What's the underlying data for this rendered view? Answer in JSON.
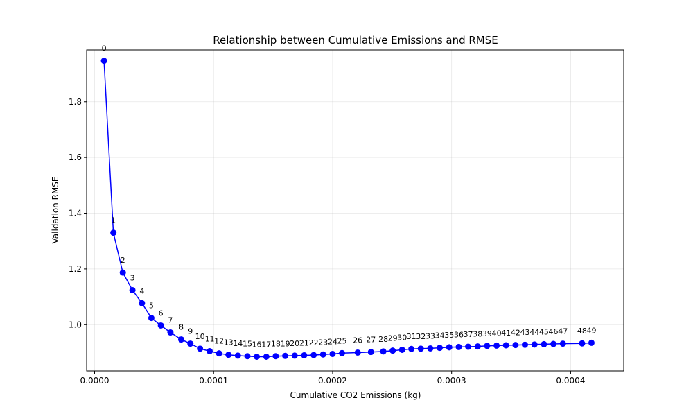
{
  "chart_data": {
    "type": "line",
    "title": "Relationship between Cumulative Emissions and RMSE",
    "xlabel": "Cumulative CO2 Emissions (kg)",
    "ylabel": "Validation RMSE",
    "xlim": [
      -6.7e-06,
      0.0004446
    ],
    "ylim": [
      0.834,
      1.986
    ],
    "xticks": [
      0.0,
      0.0001,
      0.0002,
      0.0003,
      0.0004
    ],
    "xtick_labels": [
      "0.0000",
      "0.0001",
      "0.0002",
      "0.0003",
      "0.0004"
    ],
    "yticks": [
      1.0,
      1.2,
      1.4,
      1.6,
      1.8
    ],
    "ytick_labels": [
      "1.0",
      "1.2",
      "1.4",
      "1.6",
      "1.8"
    ],
    "grid": true,
    "line_color": "#0000ff",
    "marker": "circle",
    "series": [
      {
        "x": [
          7.9e-06,
          1.58e-05,
          2.37e-05,
          3.18e-05,
          3.98e-05,
          4.77e-05,
          5.57e-05,
          6.37e-05,
          7.28e-05,
          8.05e-05,
          8.86e-05,
          9.67e-05,
          0.0001046,
          0.0001125,
          0.0001204,
          0.0001284,
          0.0001363,
          0.0001443,
          0.0001522,
          0.0001602,
          0.0001681,
          0.0001761,
          0.0001841,
          0.000192,
          0.0002,
          0.0002079,
          0.0002211,
          0.0002322,
          0.0002426,
          0.0002505,
          0.0002584,
          0.0002662,
          0.0002741,
          0.0002821,
          0.00029,
          0.000298,
          0.000306,
          0.0003139,
          0.0003219,
          0.0003298,
          0.0003378,
          0.0003457,
          0.0003537,
          0.0003616,
          0.0003696,
          0.0003776,
          0.0003855,
          0.0003935,
          0.0004096,
          0.0004175
        ],
        "labels": [
          "0",
          "1",
          "2",
          "3",
          "4",
          "5",
          "6",
          "7",
          "8",
          "9",
          "10",
          "11",
          "12",
          "13",
          "14",
          "15",
          "16",
          "17",
          "18",
          "19",
          "20",
          "21",
          "22",
          "23",
          "24",
          "25",
          "26",
          "27",
          "28",
          "29",
          "30",
          "31",
          "32",
          "33",
          "34",
          "35",
          "36",
          "37",
          "38",
          "39",
          "40",
          "41",
          "42",
          "43",
          "44",
          "45",
          "46",
          "47",
          "48",
          "49"
        ],
        "values": [
          1.947,
          1.33,
          1.187,
          1.124,
          1.077,
          1.024,
          0.997,
          0.972,
          0.947,
          0.932,
          0.914,
          0.905,
          0.897,
          0.892,
          0.889,
          0.887,
          0.885,
          0.885,
          0.887,
          0.888,
          0.889,
          0.89,
          0.891,
          0.893,
          0.895,
          0.898,
          0.9,
          0.902,
          0.904,
          0.907,
          0.91,
          0.913,
          0.914,
          0.915,
          0.917,
          0.919,
          0.92,
          0.921,
          0.922,
          0.924,
          0.925,
          0.926,
          0.927,
          0.928,
          0.929,
          0.93,
          0.931,
          0.932,
          0.933,
          0.935
        ]
      }
    ]
  }
}
